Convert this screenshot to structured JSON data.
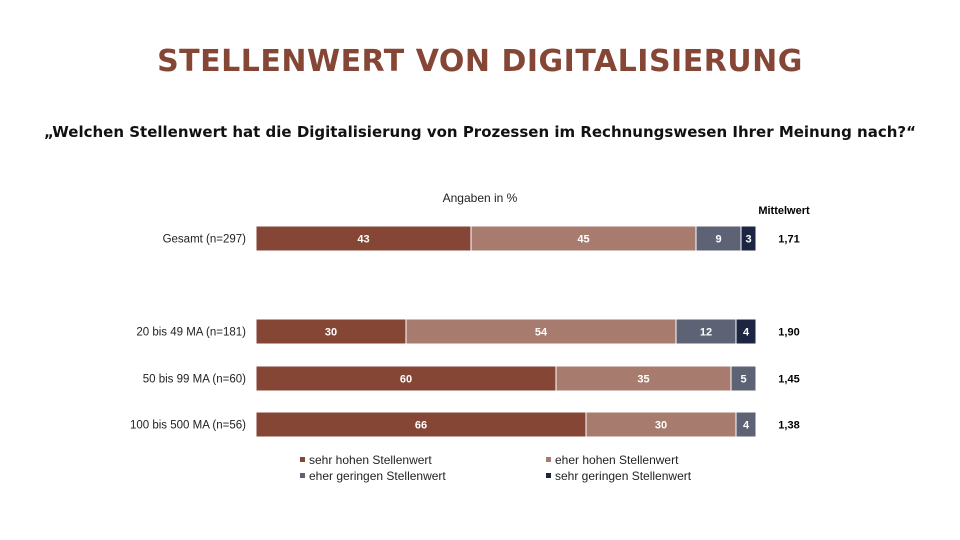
{
  "title": "STELLENWERT VON DIGITALISIERUNG",
  "question": "„Welchen Stellenwert hat die Digitalisierung von Prozessen im Rechnungswesen Ihrer Meinung nach?“",
  "unit_label": "Angaben in %",
  "mean_header": "Mittelwert",
  "chart_data": {
    "type": "bar",
    "orientation": "horizontal",
    "stacked": true,
    "xlim": [
      0,
      100
    ],
    "categories": [
      "Gesamt (n=297)",
      "20 bis 49 MA (n=181)",
      "50 bis 99 MA (n=60)",
      "100 bis 500 MA (n=56)"
    ],
    "series": [
      {
        "name": "sehr hohen Stellenwert",
        "color": "#854636",
        "values": [
          43,
          30,
          60,
          66
        ]
      },
      {
        "name": "eher hohen Stellenwert",
        "color": "#A77B6E",
        "values": [
          45,
          54,
          35,
          30
        ]
      },
      {
        "name": "eher geringen Stellenwert",
        "color": "#5D6275",
        "values": [
          9,
          12,
          5,
          4
        ]
      },
      {
        "name": "sehr geringen Stellenwert",
        "color": "#1C2541",
        "values": [
          3,
          4,
          0,
          0
        ]
      }
    ],
    "mean_values": [
      "1,71",
      "1,90",
      "1,45",
      "1,38"
    ],
    "legend_position": "bottom",
    "grid": false
  }
}
